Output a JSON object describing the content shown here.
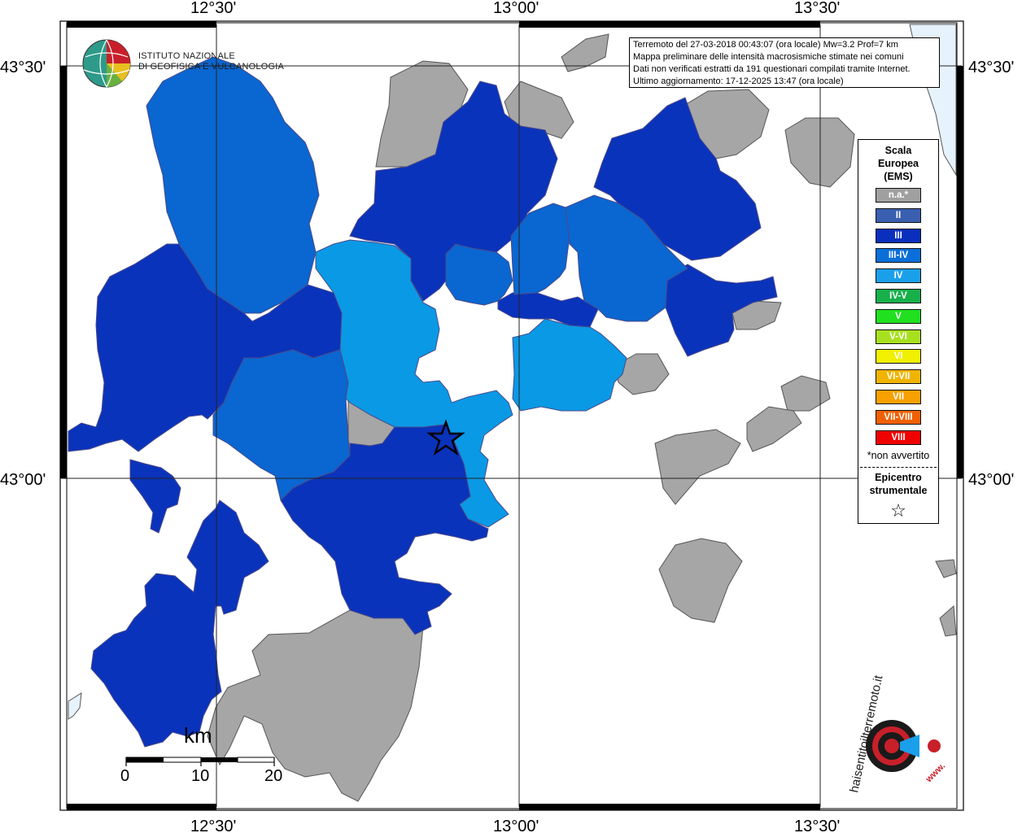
{
  "map": {
    "lon_labels": [
      "12°30'",
      "13°00'",
      "13°30'"
    ],
    "lat_labels": [
      "43°30'",
      "43°00'"
    ]
  },
  "info": {
    "line1": "Terremoto del 27-03-2018 00:43:07 (ora locale) Mw=3.2 Prof=7 km",
    "line2": "Mappa preliminare delle intensità macrosismiche stimate nei comuni",
    "line3": "Dati non verificati estratti da 191 questionari compilati tramite Internet.",
    "line4": "Ultimo aggiornamento: 17-12-2025 13:47 (ora locale)"
  },
  "logo": {
    "line1": "ISTITUTO NAZIONALE",
    "line2": "DI GEOFISICA E VULCANOLOGIA"
  },
  "legend": {
    "title_line1": "Scala",
    "title_line2": "Europea",
    "title_line3": "(EMS)",
    "items": [
      {
        "label": "n.a.*",
        "color": "#a0a0a0"
      },
      {
        "label": "II",
        "color": "#3a5fb0"
      },
      {
        "label": "III",
        "color": "#0a2fbd"
      },
      {
        "label": "III-IV",
        "color": "#0a6fd8"
      },
      {
        "label": "IV",
        "color": "#1aa0ea"
      },
      {
        "label": "IV-V",
        "color": "#18b04a"
      },
      {
        "label": "V",
        "color": "#20e020"
      },
      {
        "label": "V-VI",
        "color": "#a8e020"
      },
      {
        "label": "VI",
        "color": "#f0f000"
      },
      {
        "label": "VI-VII",
        "color": "#f0b400"
      },
      {
        "label": "VII",
        "color": "#f8a000"
      },
      {
        "label": "VII-VIII",
        "color": "#f06000"
      },
      {
        "label": "VIII",
        "color": "#f00000"
      }
    ],
    "note": "*non avvertito",
    "epi_line1": "Epicentro",
    "epi_line2": "strumentale"
  },
  "scale_bar": {
    "unit": "km",
    "labels": [
      "0",
      "10",
      "20"
    ]
  },
  "hst_logo": {
    "text": "haisentitoilterremoto.it",
    "www": "www."
  },
  "colors": {
    "na": "#a6a6a6",
    "ems3": "#0a33bb",
    "ems34": "#0a66d0",
    "ems4": "#0a99e5",
    "sea": "#e6f2fc"
  }
}
